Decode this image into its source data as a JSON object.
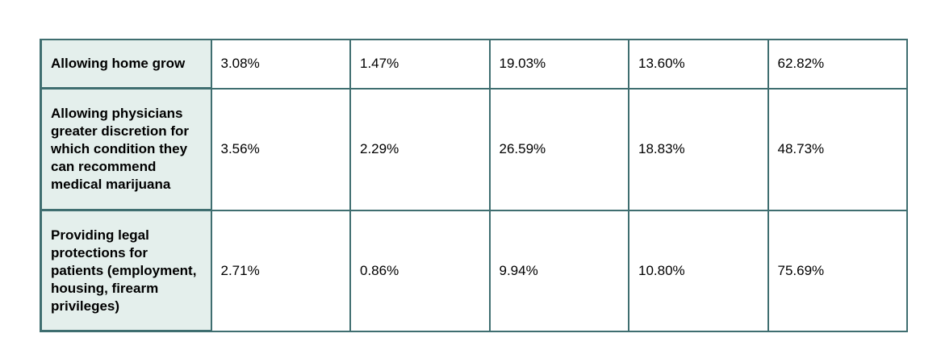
{
  "table": {
    "rows": [
      [
        "Allowing home grow",
        "3.08%",
        "1.47%",
        "19.03%",
        "13.60%",
        "62.82%"
      ],
      [
        "Allowing physicians greater discretion for which condition they can recommend medical marijuana",
        "3.56%",
        "2.29%",
        "26.59%",
        "18.83%",
        "48.73%"
      ],
      [
        "Providing legal protections for patients (employment, housing, firearm privileges)",
        "2.71%",
        "0.86%",
        "9.94%",
        "10.80%",
        "75.69%"
      ]
    ]
  }
}
